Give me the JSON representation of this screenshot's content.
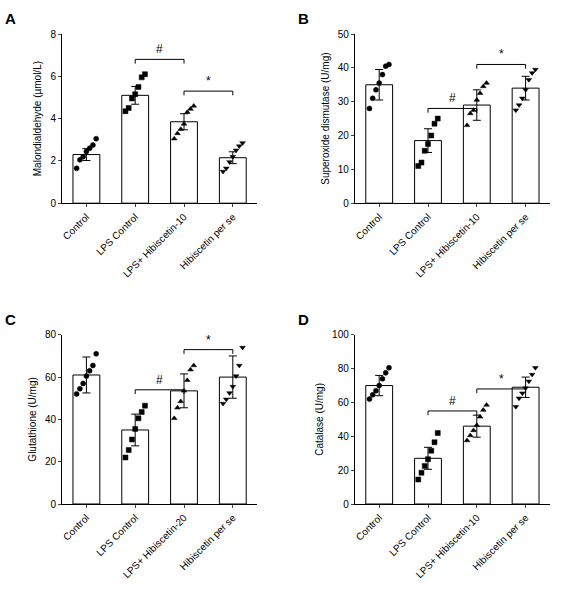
{
  "chart_data": [
    {
      "type": "bar",
      "title": "A",
      "ylabel": "Malondialdehyde (µmol/L)",
      "categories": [
        "Control",
        "LPS Control",
        "LPS+ Hibiscetin-10",
        "Hibiscetin per se"
      ],
      "values": [
        2.3,
        5.1,
        3.85,
        2.15
      ],
      "errors": [
        0.28,
        0.42,
        0.38,
        0.28
      ],
      "color": "#ffffff",
      "points": [
        {
          "marker": "circle",
          "color": "#000000",
          "values": [
            1.65,
            2.05,
            2.2,
            2.45,
            2.6,
            2.75,
            3.05
          ]
        },
        {
          "marker": "square",
          "color": "#000000",
          "values": [
            4.35,
            4.5,
            4.95,
            5.15,
            5.5,
            5.95,
            6.1
          ]
        },
        {
          "marker": "triangle-up",
          "color": "#000000",
          "values": [
            3.05,
            3.3,
            3.5,
            3.75,
            4.3,
            4.45,
            4.6
          ]
        },
        {
          "marker": "triangle-down",
          "color": "#000000",
          "values": [
            1.5,
            1.65,
            1.95,
            2.2,
            2.5,
            2.7,
            2.85
          ]
        }
      ],
      "annotations": [
        {
          "text": "#",
          "from": "LPS Control",
          "to": "LPS+ Hibiscetin-10",
          "y": 6.8
        },
        {
          "text": "*",
          "from": "LPS+ Hibiscetin-10",
          "to": "Hibiscetin per se",
          "y": 5.3
        }
      ],
      "ylim": [
        0,
        8
      ],
      "yticks": [
        0,
        2,
        4,
        6,
        8
      ],
      "grid": false
    },
    {
      "type": "bar",
      "title": "B",
      "ylabel": "Superoxide dismutase (U/mg)",
      "categories": [
        "Control",
        "LPS Control",
        "LPS+ Hibiscetin-10",
        "Hibiscetin per se"
      ],
      "values": [
        35.0,
        18.5,
        29.0,
        34.0
      ],
      "errors": [
        4.5,
        3.5,
        4.5,
        3.5
      ],
      "color": "#ffffff",
      "points": [
        {
          "marker": "circle",
          "color": "#000000",
          "values": [
            28.0,
            31.0,
            33.5,
            35.5,
            38.0,
            40.5,
            41.0
          ]
        },
        {
          "marker": "square",
          "color": "#000000",
          "values": [
            11.0,
            12.0,
            15.5,
            17.5,
            20.0,
            23.5,
            25.0
          ]
        },
        {
          "marker": "triangle-up",
          "color": "#000000",
          "values": [
            23.0,
            26.5,
            27.5,
            30.5,
            32.5,
            34.5,
            35.5
          ]
        },
        {
          "marker": "triangle-down",
          "color": "#000000",
          "values": [
            27.5,
            29.0,
            31.0,
            33.5,
            36.5,
            38.5,
            39.5
          ]
        }
      ],
      "annotations": [
        {
          "text": "#",
          "from": "LPS Control",
          "to": "LPS+ Hibiscetin-10",
          "y": 28.0
        },
        {
          "text": "*",
          "from": "LPS+ Hibiscetin-10",
          "to": "Hibiscetin per se",
          "y": 41.0
        }
      ],
      "ylim": [
        0,
        50
      ],
      "yticks": [
        0,
        10,
        20,
        30,
        40,
        50
      ],
      "grid": false
    },
    {
      "type": "bar",
      "title": "C",
      "ylabel": "Glutathione (U/mg)",
      "categories": [
        "Control",
        "LPS Control",
        "LPS+ Hibiscetin-20",
        "Hibiscetin per se"
      ],
      "values": [
        61.0,
        35.0,
        53.5,
        60.0
      ],
      "errors": [
        8.5,
        7.5,
        8.0,
        10.0
      ],
      "color": "#ffffff",
      "points": [
        {
          "marker": "circle",
          "color": "#000000",
          "values": [
            52.0,
            54.5,
            57.0,
            60.5,
            63.0,
            65.5,
            71.0
          ]
        },
        {
          "marker": "square",
          "color": "#000000",
          "values": [
            22.0,
            25.5,
            30.5,
            35.5,
            40.5,
            43.5,
            46.5
          ]
        },
        {
          "marker": "triangle-up",
          "color": "#000000",
          "values": [
            40.5,
            45.5,
            48.5,
            53.5,
            58.5,
            63.5,
            65.5
          ]
        },
        {
          "marker": "triangle-down",
          "color": "#000000",
          "values": [
            47.5,
            49.5,
            52.5,
            55.5,
            60.5,
            65.5,
            74.0
          ]
        }
      ],
      "annotations": [
        {
          "text": "#",
          "from": "LPS Control",
          "to": "LPS+ Hibiscetin-20",
          "y": 54.0
        },
        {
          "text": "*",
          "from": "LPS+ Hibiscetin-20",
          "to": "Hibiscetin per se",
          "y": 73.0
        }
      ],
      "ylim": [
        0,
        80
      ],
      "yticks": [
        0,
        20,
        40,
        60,
        80
      ],
      "grid": false
    },
    {
      "type": "bar",
      "title": "D",
      "ylabel": "Catalase (U/mg)",
      "categories": [
        "Control",
        "LPS Control",
        "LPS+ Hibiscetin-10",
        "Hibiscetin per se"
      ],
      "values": [
        70.0,
        27.0,
        46.0,
        69.0
      ],
      "errors": [
        6.0,
        6.5,
        6.5,
        6.0
      ],
      "color": "#ffffff",
      "points": [
        {
          "marker": "circle",
          "color": "#000000",
          "values": [
            62.0,
            64.5,
            67.0,
            70.0,
            74.0,
            77.5,
            80.5
          ]
        },
        {
          "marker": "square",
          "color": "#000000",
          "values": [
            14.5,
            18.5,
            22.5,
            26.5,
            31.5,
            36.5,
            42.0
          ]
        },
        {
          "marker": "triangle-up",
          "color": "#000000",
          "values": [
            37.5,
            40.5,
            43.5,
            46.5,
            51.5,
            55.5,
            58.5
          ]
        },
        {
          "marker": "triangle-down",
          "color": "#000000",
          "values": [
            57.5,
            62.5,
            65.5,
            68.5,
            72.5,
            76.5,
            80.5
          ]
        }
      ],
      "annotations": [
        {
          "text": "#",
          "from": "LPS Control",
          "to": "LPS+ Hibiscetin-10",
          "y": 55.0
        },
        {
          "text": "*",
          "from": "LPS+ Hibiscetin-10",
          "to": "Hibiscetin per se",
          "y": 68.0
        }
      ],
      "ylim": [
        0,
        100
      ],
      "yticks": [
        0,
        20,
        40,
        60,
        80,
        100
      ],
      "grid": false
    }
  ]
}
